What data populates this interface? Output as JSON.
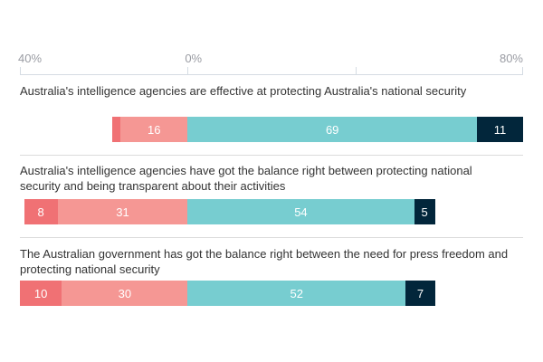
{
  "chart_data": {
    "type": "bar",
    "orientation": "horizontal",
    "stacked": "diverging",
    "xlim": [
      -40,
      80
    ],
    "x_ticks": [
      -40,
      0,
      40,
      80
    ],
    "x_tick_labels": [
      "40%",
      "0%",
      "",
      "80%"
    ],
    "categories": [
      "Australia's intelligence agencies are effective at protecting Australia's national security",
      "Australia's intelligence agencies have got the balance right between protecting national security and being transparent about their activities",
      "The Australian government has got the balance right between the need for press freedom and protecting national security"
    ],
    "series": [
      {
        "side": "negative",
        "color": "#f07174",
        "values": [
          2,
          8,
          10
        ],
        "labels": [
          "",
          "8",
          "10"
        ]
      },
      {
        "side": "negative",
        "color": "#f59794",
        "values": [
          16,
          31,
          30
        ],
        "labels": [
          "16",
          "31",
          "30"
        ]
      },
      {
        "side": "positive",
        "color": "#77cdd0",
        "values": [
          69,
          54,
          52
        ],
        "labels": [
          "69",
          "54",
          "52"
        ]
      },
      {
        "side": "positive",
        "color": "#02263b",
        "values": [
          11,
          5,
          7
        ],
        "labels": [
          "11",
          "5",
          "7"
        ]
      }
    ],
    "grid": false
  }
}
